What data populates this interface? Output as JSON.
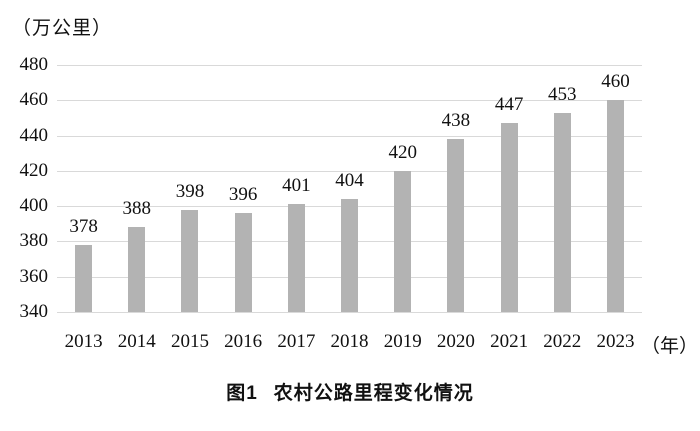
{
  "chart_data": {
    "type": "bar",
    "categories": [
      "2013",
      "2014",
      "2015",
      "2016",
      "2017",
      "2018",
      "2019",
      "2020",
      "2021",
      "2022",
      "2023"
    ],
    "values": [
      378,
      388,
      398,
      396,
      401,
      404,
      420,
      438,
      447,
      453,
      460
    ],
    "title": "图1 农村公路里程变化情况",
    "xlabel": "（年）",
    "ylabel": "（万公里）",
    "ylim": [
      340,
      480
    ],
    "ytick_step": 20,
    "grid": true,
    "legend": "none",
    "bar_color": "#b3b3b3",
    "grid_color": "#d9d9d9"
  },
  "labels": {
    "y_unit": "（万公里）",
    "x_unit": "（年）"
  },
  "caption": {
    "label": "图1",
    "text": "农村公路里程变化情况"
  }
}
